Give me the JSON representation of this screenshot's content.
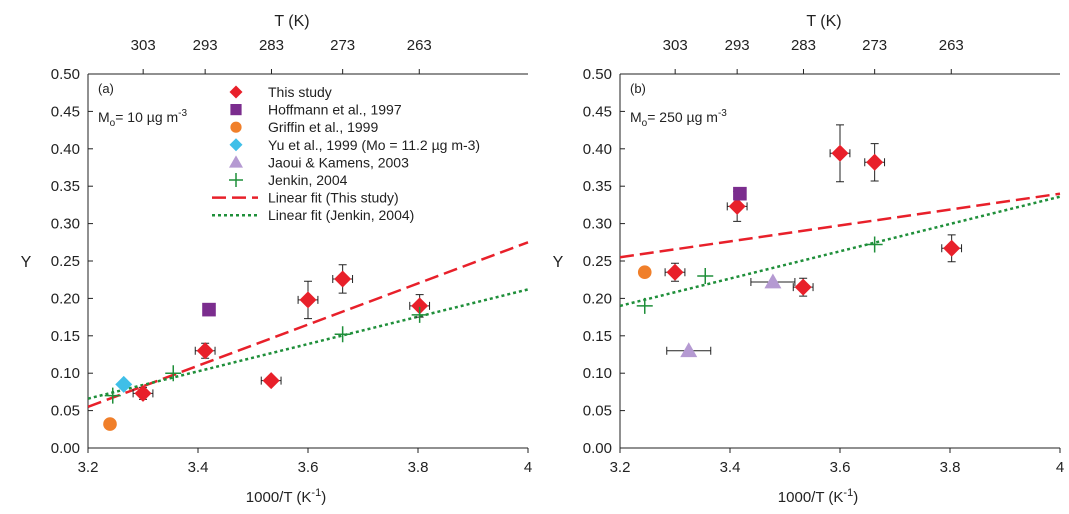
{
  "chart_data": [
    {
      "type": "scatter",
      "panel_label": "(a)",
      "annotation": {
        "main": "M",
        "sub": "o",
        "rest": "= 10 µg m",
        "sup": "-3"
      },
      "xlabel": "1000/T (K",
      "xlabel_sup": "-1",
      "xlabel_end": ")",
      "ylabel": "Y",
      "top_axis_label": "T (K)",
      "top_ticks": [
        "303",
        "293",
        "283",
        "273",
        "263"
      ],
      "top_tick_positions": [
        3.3003,
        3.413,
        3.5336,
        3.663,
        3.8023
      ],
      "xlim": [
        3.2,
        4.0
      ],
      "ylim": [
        0.0,
        0.5
      ],
      "xticks": [
        "3.2",
        "3.4",
        "3.6",
        "3.8",
        "4"
      ],
      "xtick_values": [
        3.2,
        3.4,
        3.6,
        3.8,
        4.0
      ],
      "yticks": [
        "0.00",
        "0.05",
        "0.10",
        "0.15",
        "0.20",
        "0.25",
        "0.30",
        "0.35",
        "0.40",
        "0.45",
        "0.50"
      ],
      "ytick_values": [
        0.0,
        0.05,
        0.1,
        0.15,
        0.2,
        0.25,
        0.3,
        0.35,
        0.4,
        0.45,
        0.5
      ],
      "grid": false,
      "legend_position": "top-center",
      "series": [
        {
          "name": "This study",
          "marker": "diamond",
          "color": "#e8202a",
          "points": [
            {
              "x": 3.3,
              "y": 0.073,
              "xerr": 0.018,
              "yerr": 0.008
            },
            {
              "x": 3.413,
              "y": 0.13,
              "xerr": 0.018,
              "yerr": 0.01
            },
            {
              "x": 3.533,
              "y": 0.09,
              "xerr": 0.018,
              "yerr": 0.005
            },
            {
              "x": 3.6,
              "y": 0.198,
              "xerr": 0.018,
              "yerr": 0.025
            },
            {
              "x": 3.663,
              "y": 0.226,
              "xerr": 0.018,
              "yerr": 0.019
            },
            {
              "x": 3.803,
              "y": 0.19,
              "xerr": 0.018,
              "yerr": 0.015
            }
          ]
        },
        {
          "name": "Hoffmann et al., 1997",
          "marker": "square",
          "color": "#7b2d8e",
          "points": [
            {
              "x": 3.42,
              "y": 0.185
            }
          ]
        },
        {
          "name": "Griffin et al., 1999",
          "marker": "circle",
          "color": "#f07f2a",
          "points": [
            {
              "x": 3.24,
              "y": 0.032
            }
          ]
        },
        {
          "name": "Yu et al., 1999 (Mo = 11.2 µg m-3)",
          "marker": "diamond",
          "color": "#3fbfe8",
          "points": [
            {
              "x": 3.265,
              "y": 0.085
            }
          ]
        },
        {
          "name": "Jaoui & Kamens, 2003",
          "marker": "triangle",
          "color": "#b59ad2",
          "points": []
        },
        {
          "name": "Jenkin, 2004",
          "marker": "plus",
          "color": "#1f8f3a",
          "points": [
            {
              "x": 3.245,
              "y": 0.07
            },
            {
              "x": 3.355,
              "y": 0.1
            },
            {
              "x": 3.663,
              "y": 0.152
            },
            {
              "x": 3.803,
              "y": 0.178
            }
          ]
        },
        {
          "name": "Linear fit (This study)",
          "line": "dashed",
          "color": "#e8202a",
          "endpoints": [
            [
              3.2,
              0.055
            ],
            [
              4.0,
              0.275
            ]
          ]
        },
        {
          "name": "Linear fit (Jenkin, 2004)",
          "line": "dotted",
          "color": "#1f8f3a",
          "endpoints": [
            [
              3.2,
              0.066
            ],
            [
              4.0,
              0.212
            ]
          ]
        }
      ]
    },
    {
      "type": "scatter",
      "panel_label": "(b)",
      "annotation": {
        "main": "M",
        "sub": "o",
        "rest": "= 250 µg m",
        "sup": "-3"
      },
      "xlabel": "1000/T (K",
      "xlabel_sup": "-1",
      "xlabel_end": ")",
      "ylabel": "Y",
      "top_axis_label": "T (K)",
      "top_ticks": [
        "303",
        "293",
        "283",
        "273",
        "263"
      ],
      "top_tick_positions": [
        3.3003,
        3.413,
        3.5336,
        3.663,
        3.8023
      ],
      "xlim": [
        3.2,
        4.0
      ],
      "ylim": [
        0.0,
        0.5
      ],
      "xticks": [
        "3.2",
        "3.4",
        "3.6",
        "3.8",
        "4"
      ],
      "xtick_values": [
        3.2,
        3.4,
        3.6,
        3.8,
        4.0
      ],
      "yticks": [
        "0.00",
        "0.05",
        "0.10",
        "0.15",
        "0.20",
        "0.25",
        "0.30",
        "0.35",
        "0.40",
        "0.45",
        "0.50"
      ],
      "ytick_values": [
        0.0,
        0.05,
        0.1,
        0.15,
        0.2,
        0.25,
        0.3,
        0.35,
        0.4,
        0.45,
        0.5
      ],
      "grid": false,
      "series": [
        {
          "name": "This study",
          "marker": "diamond",
          "color": "#e8202a",
          "points": [
            {
              "x": 3.3,
              "y": 0.235,
              "xerr": 0.018,
              "yerr": 0.012
            },
            {
              "x": 3.413,
              "y": 0.323,
              "xerr": 0.018,
              "yerr": 0.02
            },
            {
              "x": 3.533,
              "y": 0.215,
              "xerr": 0.018,
              "yerr": 0.012
            },
            {
              "x": 3.6,
              "y": 0.394,
              "xerr": 0.018,
              "yerr": 0.038
            },
            {
              "x": 3.663,
              "y": 0.382,
              "xerr": 0.018,
              "yerr": 0.025
            },
            {
              "x": 3.803,
              "y": 0.267,
              "xerr": 0.018,
              "yerr": 0.018
            }
          ]
        },
        {
          "name": "Hoffmann et al., 1997",
          "marker": "square",
          "color": "#7b2d8e",
          "points": [
            {
              "x": 3.418,
              "y": 0.34
            }
          ]
        },
        {
          "name": "Griffin et al., 1999",
          "marker": "circle",
          "color": "#f07f2a",
          "points": [
            {
              "x": 3.245,
              "y": 0.235
            }
          ]
        },
        {
          "name": "Jaoui & Kamens, 2003",
          "marker": "triangle",
          "color": "#b59ad2",
          "points": [
            {
              "x": 3.325,
              "y": 0.13,
              "xerr": 0.04
            },
            {
              "x": 3.478,
              "y": 0.222,
              "xerr": 0.04
            }
          ]
        },
        {
          "name": "Jenkin, 2004",
          "marker": "plus",
          "color": "#1f8f3a",
          "points": [
            {
              "x": 3.245,
              "y": 0.19
            },
            {
              "x": 3.355,
              "y": 0.23
            },
            {
              "x": 3.663,
              "y": 0.272
            }
          ]
        },
        {
          "name": "Linear fit (This study)",
          "line": "dashed",
          "color": "#e8202a",
          "endpoints": [
            [
              3.2,
              0.255
            ],
            [
              4.0,
              0.34
            ]
          ]
        },
        {
          "name": "Linear fit (Jenkin, 2004)",
          "line": "dotted",
          "color": "#1f8f3a",
          "endpoints": [
            [
              3.2,
              0.19
            ],
            [
              4.0,
              0.336
            ]
          ]
        }
      ]
    }
  ]
}
